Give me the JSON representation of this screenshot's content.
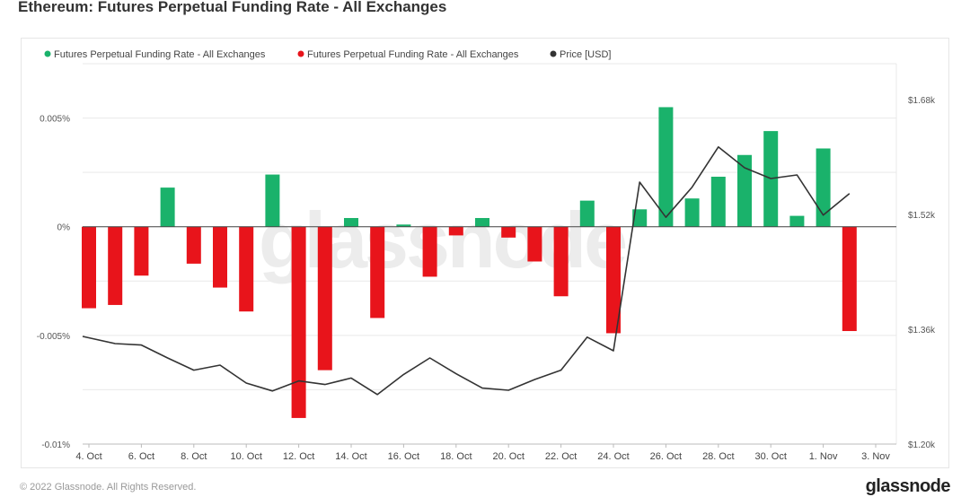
{
  "title": "Ethereum: Futures Perpetual Funding Rate - All Exchanges",
  "watermark": "glassnode",
  "footer": {
    "copyright": "© 2022 Glassnode. All Rights Reserved.",
    "logo": "glassnode"
  },
  "colors": {
    "positive": "#1ab26b",
    "negative": "#e8141b",
    "price": "#333333",
    "grid": "#e9e9e9",
    "axis": "#444444"
  },
  "chart_data": {
    "type": "bar",
    "legend": [
      {
        "label": "Futures Perpetual Funding Rate - All Exchanges",
        "color": "#1ab26b"
      },
      {
        "label": "Futures Perpetual Funding Rate - All Exchanges",
        "color": "#e8141b"
      },
      {
        "label": "Price [USD]",
        "color": "#333333"
      }
    ],
    "legend_position": "top-left",
    "grid": true,
    "x_ticks": [
      "4. Oct",
      "6. Oct",
      "8. Oct",
      "10. Oct",
      "12. Oct",
      "14. Oct",
      "16. Oct",
      "18. Oct",
      "20. Oct",
      "22. Oct",
      "24. Oct",
      "26. Oct",
      "28. Oct",
      "30. Oct",
      "1. Nov",
      "3. Nov"
    ],
    "y_left": {
      "ticks": [
        "0.005%",
        "0%",
        "-0.005%",
        "-0.01%"
      ],
      "values": [
        0.005,
        0,
        -0.005,
        -0.01
      ],
      "ylim": [
        -0.01,
        0.0075
      ]
    },
    "y_right": {
      "ticks": [
        "$1.68k",
        "$1.52k",
        "$1.36k",
        "$1.20k"
      ],
      "values": [
        1680,
        1520,
        1360,
        1200
      ],
      "ylim": [
        1200,
        1730
      ]
    },
    "funding_rate": [
      -0.00375,
      -0.0036,
      -0.00225,
      0.0018,
      -0.0017,
      -0.0028,
      -0.0039,
      0.0024,
      -0.0088,
      -0.0066,
      0.0004,
      -0.0042,
      0.0001,
      -0.0023,
      -0.0004,
      0.0004,
      -0.0005,
      -0.0016,
      -0.0032,
      0.0012,
      -0.0049,
      0.0008,
      0.0055,
      0.0013,
      0.0023,
      0.0033,
      0.0044,
      0.0005,
      0.0036,
      -0.0048
    ],
    "price": [
      1350,
      1340,
      1338,
      1320,
      1303,
      1310,
      1285,
      1274,
      1288,
      1283,
      1292,
      1269,
      1297,
      1320,
      1298,
      1278,
      1275,
      1290,
      1303,
      1349,
      1330,
      1565,
      1516,
      1558,
      1614,
      1585,
      1570,
      1575,
      1519,
      1549
    ]
  }
}
